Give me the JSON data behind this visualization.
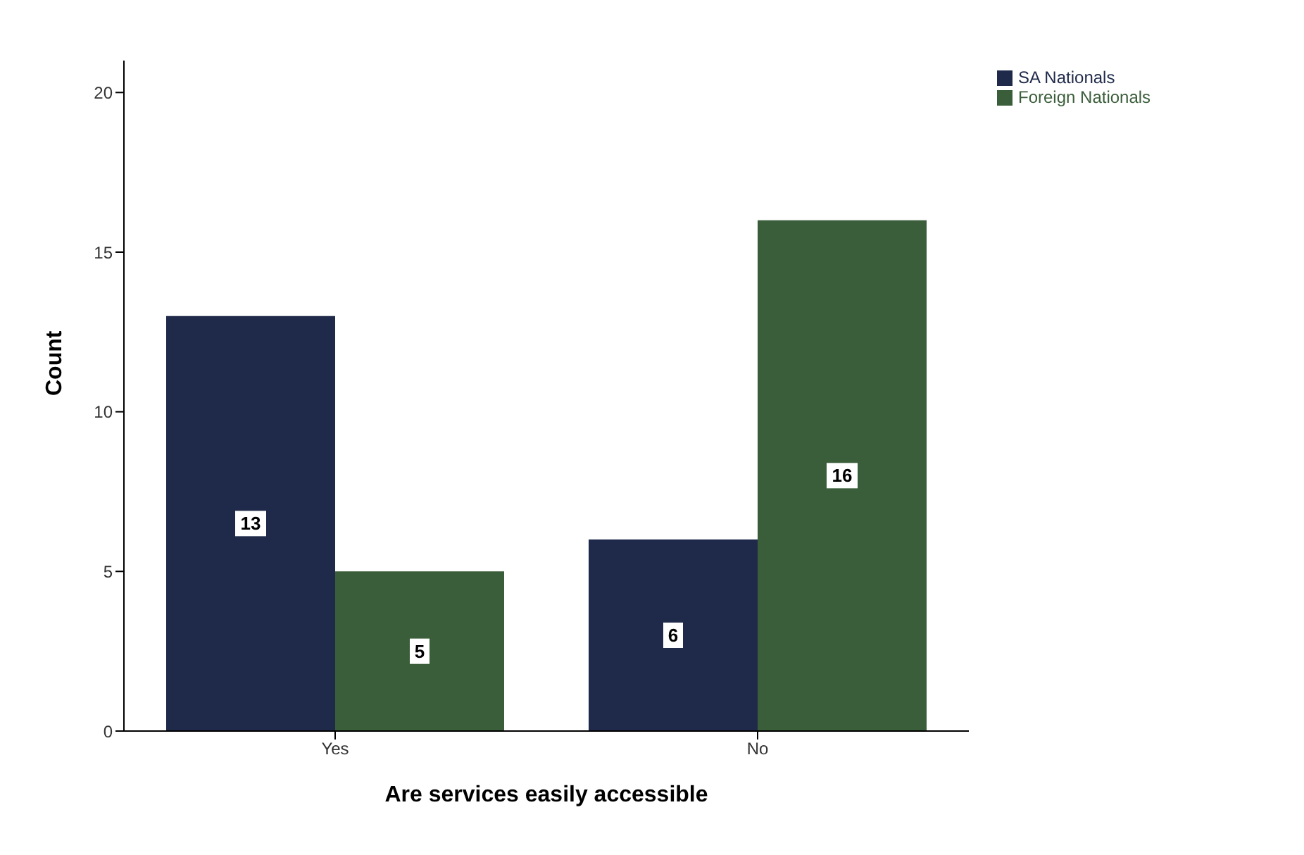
{
  "chart_data": {
    "type": "bar",
    "xlabel": "Are services easily accessible",
    "ylabel": "Count",
    "categories": [
      "Yes",
      "No"
    ],
    "series": [
      {
        "name": "SA Nationals",
        "color": "#1f2a4a",
        "values": [
          13,
          6
        ]
      },
      {
        "name": "Foreign Nationals",
        "color": "#3b5e3a",
        "values": [
          5,
          16
        ]
      }
    ],
    "ylim": [
      0,
      21
    ],
    "yticks": [
      0,
      5,
      10,
      15,
      20
    ],
    "grid": false,
    "legend": "top right",
    "data_labels": true
  }
}
